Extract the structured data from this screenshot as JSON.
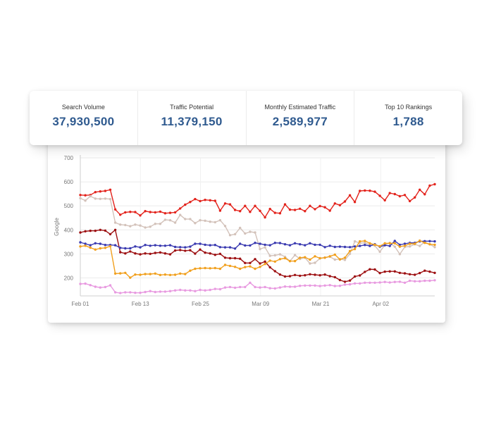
{
  "stats": [
    {
      "label": "Search Volume",
      "value": "37,930,500"
    },
    {
      "label": "Traffic Potential",
      "value": "11,379,150"
    },
    {
      "label": "Monthly Estimated Traffic",
      "value": "2,589,977"
    },
    {
      "label": "Top 10 Rankings",
      "value": "1,788"
    }
  ],
  "chart_data": {
    "type": "line",
    "ylabel": "Google",
    "ylim": [
      125,
      700
    ],
    "yticks": [
      "200",
      "300",
      "400",
      "500",
      "600",
      "700"
    ],
    "xticks": [
      "Feb 01",
      "Feb 13",
      "Feb 25",
      "Mar 09",
      "Mar 21",
      "Apr 02"
    ],
    "grid": true,
    "legend": "none",
    "series": [
      {
        "color": "#e3231c",
        "values": [
          545,
          544,
          545,
          557,
          560,
          562,
          567,
          485,
          463,
          473,
          475,
          474,
          460,
          478,
          474,
          473,
          476,
          469,
          471,
          473,
          489,
          505,
          516,
          528,
          520,
          525,
          523,
          521,
          480,
          510,
          506,
          483,
          478,
          500,
          475,
          500,
          479,
          452,
          487,
          471,
          469,
          506,
          484,
          483,
          488,
          478,
          500,
          486,
          499,
          494,
          480,
          510,
          503,
          518,
          544,
          516,
          562,
          564,
          563,
          559,
          542,
          523,
          553,
          549,
          540,
          545,
          520,
          535,
          567,
          548,
          584,
          590
        ]
      },
      {
        "color": "#d3c2ba",
        "values": [
          532,
          522,
          540,
          530,
          529,
          530,
          528,
          430,
          422,
          420,
          415,
          422,
          418,
          410,
          413,
          425,
          425,
          442,
          440,
          430,
          462,
          445,
          445,
          428,
          440,
          438,
          434,
          432,
          440,
          416,
          378,
          382,
          408,
          385,
          392,
          389,
          320,
          327,
          292,
          294,
          298,
          288,
          270,
          295,
          279,
          284,
          260,
          263,
          281,
          285,
          288,
          276,
          278,
          275,
          300,
          352,
          345,
          346,
          337,
          334,
          309,
          337,
          346,
          330,
          299,
          329,
          331,
          340,
          333,
          350,
          340,
          328
        ]
      },
      {
        "color": "#9d1012",
        "values": [
          389,
          394,
          396,
          396,
          400,
          397,
          382,
          400,
          307,
          302,
          310,
          302,
          298,
          302,
          300,
          304,
          306,
          302,
          298,
          314,
          316,
          313,
          315,
          301,
          318,
          305,
          302,
          296,
          300,
          284,
          282,
          282,
          280,
          262,
          262,
          278,
          260,
          268,
          244,
          228,
          214,
          206,
          207,
          212,
          209,
          211,
          215,
          213,
          211,
          214,
          207,
          203,
          191,
          184,
          189,
          206,
          210,
          225,
          236,
          235,
          220,
          226,
          227,
          227,
          221,
          219,
          215,
          213,
          220,
          230,
          226,
          221
        ]
      },
      {
        "color": "#3a3ab0",
        "values": [
          348,
          342,
          336,
          344,
          342,
          337,
          337,
          336,
          325,
          323,
          323,
          331,
          327,
          337,
          334,
          336,
          334,
          334,
          336,
          329,
          328,
          327,
          330,
          342,
          342,
          338,
          336,
          337,
          328,
          327,
          327,
          322,
          342,
          335,
          335,
          346,
          342,
          338,
          336,
          346,
          345,
          340,
          336,
          344,
          340,
          336,
          344,
          338,
          338,
          328,
          334,
          329,
          330,
          329,
          328,
          331,
          333,
          337,
          333,
          340,
          330,
          336,
          333,
          354,
          338,
          342,
          346,
          346,
          352,
          353,
          353,
          352
        ]
      },
      {
        "color": "#f1a01e",
        "values": [
          331,
          334,
          326,
          318,
          323,
          325,
          332,
          218,
          219,
          221,
          201,
          214,
          213,
          216,
          216,
          218,
          212,
          214,
          212,
          213,
          218,
          216,
          230,
          238,
          240,
          241,
          240,
          241,
          238,
          254,
          250,
          246,
          238,
          245,
          248,
          238,
          246,
          258,
          272,
          268,
          278,
          282,
          270,
          270,
          284,
          286,
          276,
          290,
          282,
          284,
          290,
          297,
          277,
          284,
          312,
          320,
          352,
          354,
          344,
          338,
          332,
          344,
          344,
          344,
          330,
          334,
          342,
          342,
          355,
          346,
          340,
          338
        ]
      },
      {
        "color": "#e89ae0",
        "values": [
          175,
          176,
          170,
          163,
          160,
          162,
          169,
          140,
          137,
          140,
          140,
          138,
          138,
          141,
          145,
          141,
          143,
          143,
          145,
          148,
          150,
          148,
          148,
          145,
          150,
          148,
          150,
          154,
          153,
          160,
          162,
          159,
          162,
          162,
          180,
          162,
          160,
          162,
          157,
          156,
          160,
          164,
          163,
          163,
          167,
          168,
          168,
          168,
          166,
          168,
          170,
          166,
          167,
          172,
          173,
          177,
          177,
          180,
          180,
          180,
          181,
          183,
          181,
          183,
          184,
          180,
          188,
          186,
          186,
          188,
          188,
          190
        ]
      }
    ]
  }
}
